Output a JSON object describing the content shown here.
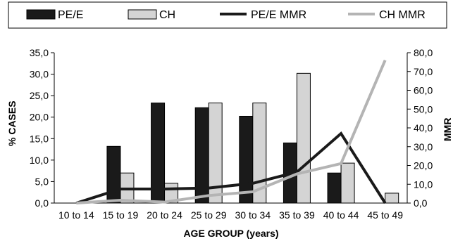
{
  "chart_data": {
    "type": "bar",
    "categories": [
      "10 to 14",
      "15 to 19",
      "20 to 24",
      "25 to 29",
      "30 to 34",
      "35 to 39",
      "40 to 44",
      "45 to 49"
    ],
    "series": [
      {
        "name": "PE/E",
        "kind": "bar",
        "axis": "left",
        "color": "#1a1a1a",
        "values": [
          0,
          13.2,
          23.3,
          22.2,
          20.2,
          14.0,
          7.0,
          0
        ]
      },
      {
        "name": "CH",
        "kind": "bar",
        "axis": "left",
        "color": "#d4d4d4",
        "values": [
          0,
          7.0,
          4.6,
          23.3,
          23.3,
          30.2,
          9.3,
          2.3
        ]
      },
      {
        "name": "PE/E MMR",
        "kind": "line",
        "axis": "right",
        "color": "#1a1a1a",
        "values": [
          0,
          7.5,
          7.5,
          8.0,
          10.5,
          16.5,
          37.0,
          0
        ]
      },
      {
        "name": "CH MMR",
        "kind": "line",
        "axis": "right",
        "color": "#b4b4b4",
        "values": [
          0,
          1.5,
          0.5,
          4.0,
          6.0,
          15.5,
          21.0,
          76.0
        ]
      }
    ],
    "xlabel": "AGE GROUP (years)",
    "ylabel": "% CASES",
    "y2label": "MMR",
    "ylim": [
      0,
      35
    ],
    "y2lim": [
      0,
      80
    ],
    "yticks": [
      "0,0",
      "5,0",
      "10,0",
      "15,0",
      "20,0",
      "25,0",
      "30,0",
      "35,0"
    ],
    "y2ticks": [
      "0,0",
      "10,0",
      "20,0",
      "30,0",
      "40,0",
      "50,0",
      "60,0",
      "70,0",
      "80,0"
    ],
    "grid": false,
    "legend_position": "top"
  }
}
